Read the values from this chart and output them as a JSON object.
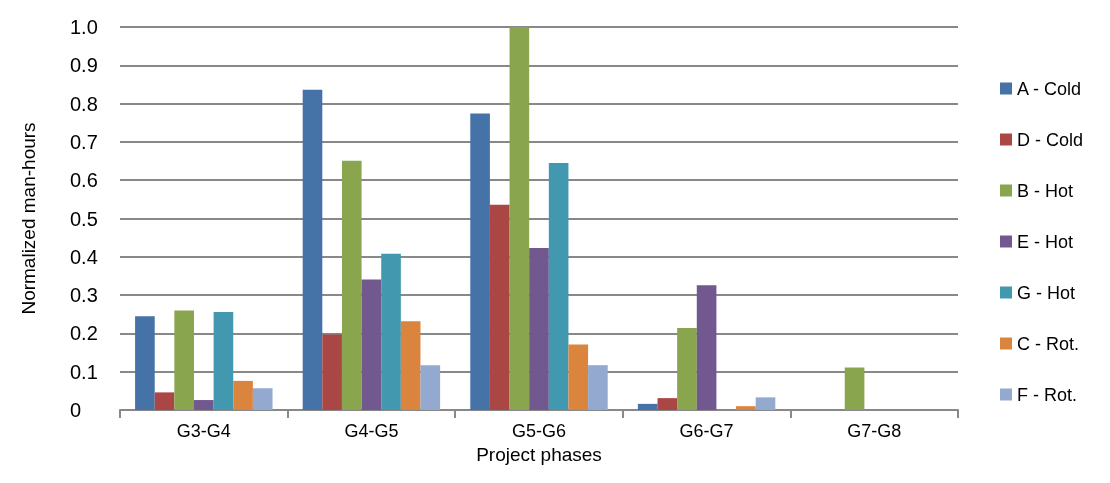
{
  "chart_data": {
    "type": "bar",
    "xlabel": "Project phases",
    "ylabel": "Normalized man-hours",
    "categories": [
      "G3-G4",
      "G4-G5",
      "G5-G6",
      "G6-G7",
      "G7-G8"
    ],
    "series": [
      {
        "name": "A - Cold",
        "color": "#4572a7",
        "values": [
          0.245,
          0.836,
          0.774,
          0.016,
          null
        ]
      },
      {
        "name": "D - Cold",
        "color": "#aa4643",
        "values": [
          0.046,
          0.197,
          0.536,
          0.031,
          null
        ]
      },
      {
        "name": "B - Hot",
        "color": "#89a54e",
        "values": [
          0.26,
          0.651,
          1.0,
          0.214,
          0.111
        ]
      },
      {
        "name": "E - Hot",
        "color": "#71588f",
        "values": [
          0.026,
          0.341,
          0.423,
          0.326,
          null
        ]
      },
      {
        "name": "G - Hot",
        "color": "#4198af",
        "values": [
          0.256,
          0.408,
          0.645,
          null,
          null
        ]
      },
      {
        "name": "C - Rot.",
        "color": "#db843d",
        "values": [
          0.076,
          0.232,
          0.171,
          0.01,
          null
        ]
      },
      {
        "name": "F - Rot.",
        "color": "#93a9cf",
        "values": [
          0.057,
          0.117,
          0.117,
          0.033,
          null
        ]
      }
    ],
    "ylim": [
      0,
      1
    ],
    "yticks": [
      0,
      0.1,
      0.2,
      0.3,
      0.4,
      0.5,
      0.6,
      0.7,
      0.8,
      0.9,
      {
        "value": 1,
        "label": "1.0"
      }
    ],
    "grid": "y",
    "legend": "right"
  }
}
